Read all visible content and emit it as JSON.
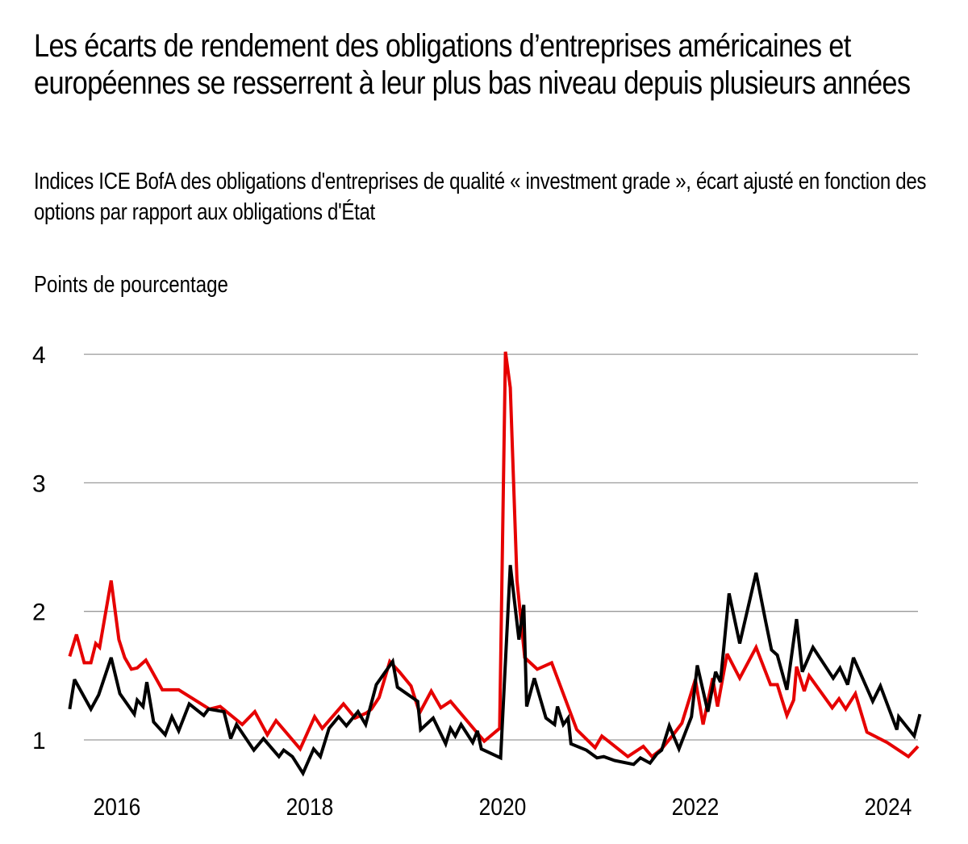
{
  "title": "Les écarts de rendement des obligations d’entreprises américaines et européennes se resserrent à leur plus bas niveau depuis plusieurs années",
  "subtitle": "Indices ICE BofA des obligations d'entreprises de qualité « investment grade », écart ajusté en fonction des options par rapport aux obligations d'État",
  "chart_data": {
    "type": "line",
    "title": "Les écarts de rendement des obligations d’entreprises américaines et européennes se resserrent à leur plus bas niveau depuis plusieurs années",
    "subtitle": "Indices ICE BofA des obligations d'entreprises de qualité « investment grade », écart ajusté en fonction des options par rapport aux obligations d'État",
    "xlabel": "",
    "ylabel": "Points de pourcentage",
    "xlim": [
      2015.5,
      2024.35
    ],
    "ylim": [
      0.7,
      4.05
    ],
    "yticks": [
      1,
      2,
      3,
      4
    ],
    "ytick_labels": [
      "1",
      "2",
      "3",
      "4"
    ],
    "xticks": [
      2016,
      2018,
      2020,
      2022,
      2024
    ],
    "xtick_labels": [
      "2016",
      "2018",
      "2020",
      "2022",
      "2024"
    ],
    "grid": "horizontal",
    "legend": "none",
    "series": [
      {
        "name": "red",
        "color": "#e60000",
        "points": [
          [
            2015.51,
            1.65
          ],
          [
            2015.58,
            1.82
          ],
          [
            2015.66,
            1.6
          ],
          [
            2015.73,
            1.6
          ],
          [
            2015.78,
            1.75
          ],
          [
            2015.82,
            1.72
          ],
          [
            2015.94,
            2.24
          ],
          [
            2016.02,
            1.78
          ],
          [
            2016.08,
            1.64
          ],
          [
            2016.15,
            1.55
          ],
          [
            2016.21,
            1.56
          ],
          [
            2016.3,
            1.62
          ],
          [
            2016.47,
            1.39
          ],
          [
            2016.64,
            1.39
          ],
          [
            2016.96,
            1.24
          ],
          [
            2017.07,
            1.26
          ],
          [
            2017.3,
            1.12
          ],
          [
            2017.43,
            1.22
          ],
          [
            2017.56,
            1.04
          ],
          [
            2017.65,
            1.15
          ],
          [
            2017.9,
            0.93
          ],
          [
            2018.05,
            1.18
          ],
          [
            2018.13,
            1.09
          ],
          [
            2018.35,
            1.28
          ],
          [
            2018.47,
            1.17
          ],
          [
            2018.59,
            1.21
          ],
          [
            2018.64,
            1.24
          ],
          [
            2018.72,
            1.33
          ],
          [
            2018.83,
            1.61
          ],
          [
            2018.93,
            1.53
          ],
          [
            2019.05,
            1.42
          ],
          [
            2019.14,
            1.21
          ],
          [
            2019.26,
            1.38
          ],
          [
            2019.36,
            1.25
          ],
          [
            2019.46,
            1.3
          ],
          [
            2019.81,
            0.99
          ],
          [
            2019.97,
            1.09
          ],
          [
            2020.03,
            4.02
          ],
          [
            2020.08,
            3.74
          ],
          [
            2020.15,
            2.24
          ],
          [
            2020.23,
            1.64
          ],
          [
            2020.36,
            1.55
          ],
          [
            2020.51,
            1.6
          ],
          [
            2020.77,
            1.08
          ],
          [
            2020.96,
            0.94
          ],
          [
            2021.03,
            1.03
          ],
          [
            2021.3,
            0.87
          ],
          [
            2021.46,
            0.95
          ],
          [
            2021.55,
            0.87
          ],
          [
            2021.65,
            0.93
          ],
          [
            2021.77,
            1.04
          ],
          [
            2021.86,
            1.13
          ],
          [
            2022.0,
            1.47
          ],
          [
            2022.08,
            1.12
          ],
          [
            2022.18,
            1.48
          ],
          [
            2022.23,
            1.26
          ],
          [
            2022.33,
            1.67
          ],
          [
            2022.46,
            1.48
          ],
          [
            2022.63,
            1.72
          ],
          [
            2022.78,
            1.43
          ],
          [
            2022.85,
            1.43
          ],
          [
            2022.95,
            1.19
          ],
          [
            2023.02,
            1.31
          ],
          [
            2023.05,
            1.57
          ],
          [
            2023.13,
            1.38
          ],
          [
            2023.18,
            1.5
          ],
          [
            2023.42,
            1.25
          ],
          [
            2023.49,
            1.32
          ],
          [
            2023.56,
            1.24
          ],
          [
            2023.66,
            1.36
          ],
          [
            2023.78,
            1.06
          ],
          [
            2023.99,
            0.98
          ],
          [
            2024.21,
            0.87
          ],
          [
            2024.31,
            0.95
          ]
        ]
      },
      {
        "name": "black",
        "color": "#000000",
        "points": [
          [
            2015.51,
            1.24
          ],
          [
            2015.56,
            1.47
          ],
          [
            2015.73,
            1.24
          ],
          [
            2015.81,
            1.35
          ],
          [
            2015.94,
            1.64
          ],
          [
            2016.03,
            1.36
          ],
          [
            2016.18,
            1.2
          ],
          [
            2016.21,
            1.31
          ],
          [
            2016.27,
            1.26
          ],
          [
            2016.31,
            1.45
          ],
          [
            2016.38,
            1.14
          ],
          [
            2016.5,
            1.04
          ],
          [
            2016.57,
            1.18
          ],
          [
            2016.64,
            1.07
          ],
          [
            2016.75,
            1.28
          ],
          [
            2016.9,
            1.19
          ],
          [
            2016.95,
            1.24
          ],
          [
            2017.11,
            1.22
          ],
          [
            2017.18,
            1.01
          ],
          [
            2017.24,
            1.12
          ],
          [
            2017.42,
            0.92
          ],
          [
            2017.52,
            1.01
          ],
          [
            2017.68,
            0.87
          ],
          [
            2017.73,
            0.92
          ],
          [
            2017.82,
            0.87
          ],
          [
            2017.93,
            0.74
          ],
          [
            2018.04,
            0.93
          ],
          [
            2018.11,
            0.87
          ],
          [
            2018.2,
            1.09
          ],
          [
            2018.3,
            1.18
          ],
          [
            2018.38,
            1.11
          ],
          [
            2018.5,
            1.22
          ],
          [
            2018.58,
            1.12
          ],
          [
            2018.69,
            1.43
          ],
          [
            2018.86,
            1.61
          ],
          [
            2018.91,
            1.41
          ],
          [
            2019.12,
            1.3
          ],
          [
            2019.15,
            1.08
          ],
          [
            2019.28,
            1.17
          ],
          [
            2019.41,
            0.97
          ],
          [
            2019.46,
            1.09
          ],
          [
            2019.51,
            1.03
          ],
          [
            2019.57,
            1.12
          ],
          [
            2019.69,
            0.98
          ],
          [
            2019.74,
            1.07
          ],
          [
            2019.78,
            0.93
          ],
          [
            2019.98,
            0.86
          ],
          [
            2020.08,
            2.36
          ],
          [
            2020.17,
            1.78
          ],
          [
            2020.22,
            2.05
          ],
          [
            2020.25,
            1.26
          ],
          [
            2020.33,
            1.48
          ],
          [
            2020.45,
            1.17
          ],
          [
            2020.54,
            1.12
          ],
          [
            2020.57,
            1.26
          ],
          [
            2020.63,
            1.12
          ],
          [
            2020.68,
            1.17
          ],
          [
            2020.71,
            0.97
          ],
          [
            2020.87,
            0.92
          ],
          [
            2020.98,
            0.86
          ],
          [
            2021.05,
            0.87
          ],
          [
            2021.16,
            0.84
          ],
          [
            2021.36,
            0.81
          ],
          [
            2021.43,
            0.86
          ],
          [
            2021.53,
            0.82
          ],
          [
            2021.6,
            0.89
          ],
          [
            2021.65,
            0.92
          ],
          [
            2021.73,
            1.11
          ],
          [
            2021.83,
            0.93
          ],
          [
            2021.96,
            1.18
          ],
          [
            2022.02,
            1.58
          ],
          [
            2022.13,
            1.22
          ],
          [
            2022.21,
            1.53
          ],
          [
            2022.26,
            1.45
          ],
          [
            2022.35,
            2.14
          ],
          [
            2022.46,
            1.75
          ],
          [
            2022.63,
            2.3
          ],
          [
            2022.73,
            1.92
          ],
          [
            2022.79,
            1.7
          ],
          [
            2022.85,
            1.66
          ],
          [
            2022.95,
            1.39
          ],
          [
            2023.05,
            1.94
          ],
          [
            2023.11,
            1.53
          ],
          [
            2023.22,
            1.72
          ],
          [
            2023.43,
            1.48
          ],
          [
            2023.5,
            1.56
          ],
          [
            2023.58,
            1.43
          ],
          [
            2023.64,
            1.64
          ],
          [
            2023.84,
            1.3
          ],
          [
            2023.92,
            1.42
          ],
          [
            2024.09,
            1.08
          ],
          [
            2024.11,
            1.18
          ],
          [
            2024.27,
            1.03
          ],
          [
            2024.33,
            1.2
          ]
        ]
      }
    ]
  }
}
